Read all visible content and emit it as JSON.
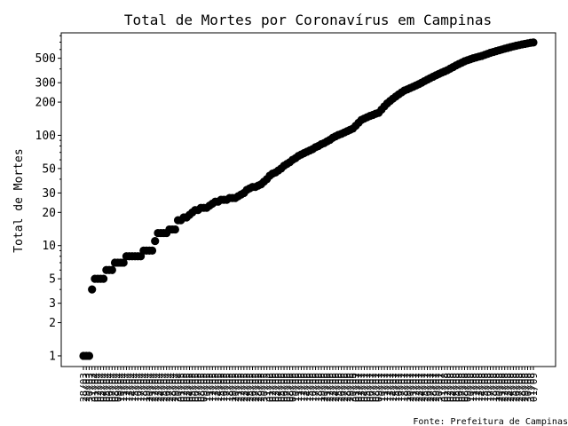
{
  "chart_data": {
    "type": "scatter",
    "title": "Total de Mortes por Coronavírus em Campinas",
    "ylabel": "Total de Mortes",
    "xlabel": "",
    "y_scale": "log",
    "ylim": [
      0.8,
      850
    ],
    "y_ticks": [
      1,
      2,
      3,
      5,
      10,
      20,
      30,
      50,
      100,
      200,
      300,
      500
    ],
    "y_tick_labels": [
      "1",
      "2",
      "3",
      "5",
      "10",
      "20",
      "30",
      "50",
      "100",
      "200",
      "300",
      "500"
    ],
    "grid": false,
    "legend": "none",
    "marker_color": "#000000",
    "x_start_label": "28/03",
    "x_end_label": "31/07",
    "source": "Fonte: Prefeitura de Campinas",
    "anchors": [
      [
        0,
        1
      ],
      [
        2,
        1
      ],
      [
        3,
        4
      ],
      [
        4,
        5
      ],
      [
        7,
        5
      ],
      [
        8,
        6
      ],
      [
        10,
        6
      ],
      [
        11,
        7
      ],
      [
        14,
        7
      ],
      [
        15,
        8
      ],
      [
        20,
        8
      ],
      [
        21,
        9
      ],
      [
        24,
        9
      ],
      [
        25,
        11
      ],
      [
        26,
        13
      ],
      [
        29,
        13
      ],
      [
        30,
        14
      ],
      [
        32,
        14
      ],
      [
        33,
        17
      ],
      [
        35,
        18
      ],
      [
        37,
        19
      ],
      [
        39,
        21
      ],
      [
        41,
        22
      ],
      [
        43,
        22
      ],
      [
        45,
        24
      ],
      [
        48,
        26
      ],
      [
        53,
        27
      ],
      [
        55,
        29
      ],
      [
        58,
        33
      ],
      [
        61,
        35
      ],
      [
        63,
        38
      ],
      [
        65,
        43
      ],
      [
        68,
        48
      ],
      [
        71,
        55
      ],
      [
        73,
        60
      ],
      [
        76,
        67
      ],
      [
        79,
        73
      ],
      [
        82,
        80
      ],
      [
        85,
        88
      ],
      [
        88,
        98
      ],
      [
        91,
        106
      ],
      [
        94,
        115
      ],
      [
        97,
        138
      ],
      [
        100,
        150
      ],
      [
        103,
        160
      ],
      [
        106,
        195
      ],
      [
        109,
        225
      ],
      [
        112,
        255
      ],
      [
        115,
        275
      ],
      [
        118,
        300
      ],
      [
        121,
        330
      ],
      [
        124,
        360
      ],
      [
        127,
        390
      ],
      [
        130,
        430
      ],
      [
        133,
        470
      ],
      [
        136,
        500
      ],
      [
        139,
        525
      ],
      [
        142,
        560
      ],
      [
        145,
        590
      ],
      [
        148,
        620
      ],
      [
        151,
        650
      ],
      [
        154,
        675
      ],
      [
        156,
        690
      ],
      [
        157,
        695
      ]
    ]
  }
}
